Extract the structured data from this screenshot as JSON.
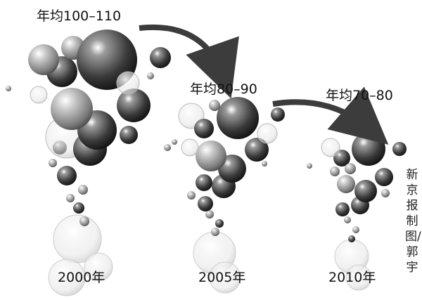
{
  "labels": {
    "range_2000": "年均100–110",
    "range_2005": "年均80–90",
    "range_2010": "年均70–80"
  },
  "years": {
    "y2000": "2000年",
    "y2005": "2005年",
    "y2010": "2010年"
  },
  "credit": "新京报制图/郭宇",
  "colors": {
    "arrow": "#3c3c3c",
    "bubble_dark": "#2e2e2e",
    "bubble_light": "#d8d8d8"
  }
}
